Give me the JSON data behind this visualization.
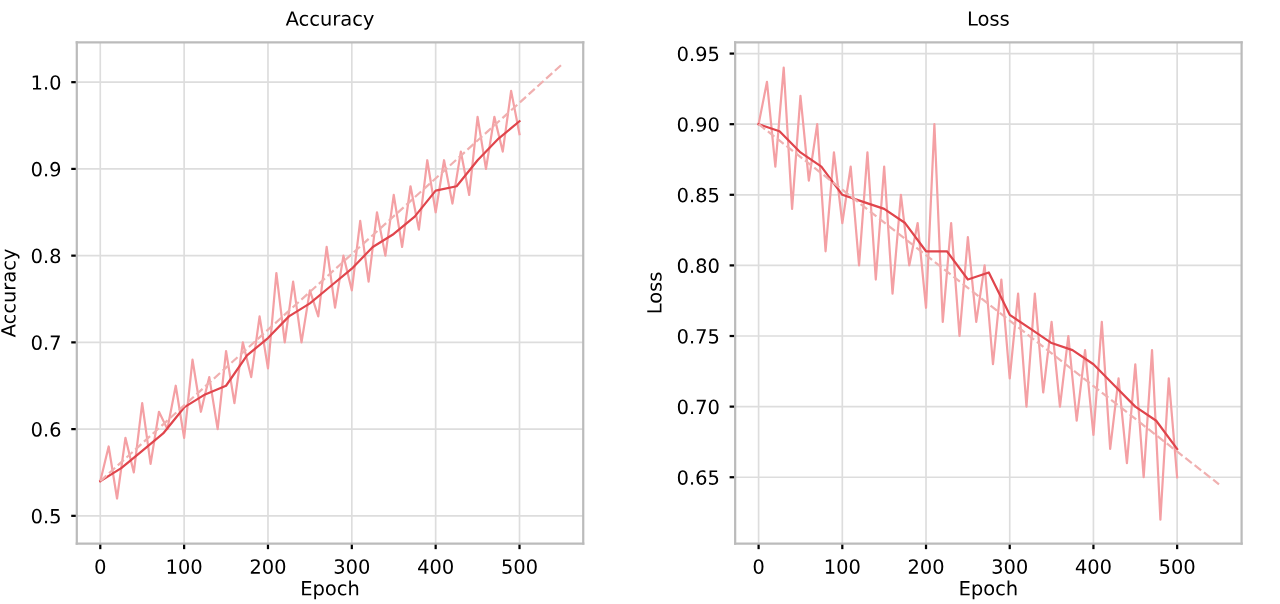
{
  "chart_data": [
    {
      "type": "line",
      "title": "Accuracy",
      "xlabel": "Epoch",
      "ylabel": "Accuracy",
      "xlim": [
        -28,
        576
      ],
      "ylim": [
        0.468,
        1.046
      ],
      "xticks": [
        0,
        100,
        200,
        300,
        400,
        500
      ],
      "yticks": [
        {
          "value": 0.5,
          "label": "0.5"
        },
        {
          "value": 0.6,
          "label": "0.6"
        },
        {
          "value": 0.7,
          "label": "0.7"
        },
        {
          "value": 0.8,
          "label": "0.8"
        },
        {
          "value": 0.9,
          "label": "0.9"
        },
        {
          "value": 1.0,
          "label": "1.0"
        }
      ],
      "grid": true,
      "legend": false,
      "series": [
        {
          "color": "#f4a0a4",
          "line_style": "solid",
          "x": [
            0,
            10,
            20,
            30,
            40,
            50,
            60,
            70,
            80,
            90,
            100,
            110,
            120,
            130,
            140,
            150,
            160,
            170,
            180,
            190,
            200,
            210,
            220,
            230,
            240,
            250,
            260,
            270,
            280,
            290,
            300,
            310,
            320,
            330,
            340,
            350,
            360,
            370,
            380,
            390,
            400,
            410,
            420,
            430,
            440,
            450,
            460,
            470,
            480,
            490,
            500
          ],
          "values": [
            0.54,
            0.58,
            0.52,
            0.59,
            0.55,
            0.63,
            0.56,
            0.62,
            0.6,
            0.65,
            0.59,
            0.68,
            0.62,
            0.66,
            0.6,
            0.69,
            0.63,
            0.7,
            0.66,
            0.73,
            0.67,
            0.78,
            0.7,
            0.77,
            0.7,
            0.76,
            0.73,
            0.81,
            0.74,
            0.8,
            0.76,
            0.84,
            0.77,
            0.85,
            0.8,
            0.87,
            0.81,
            0.88,
            0.83,
            0.91,
            0.85,
            0.91,
            0.86,
            0.92,
            0.87,
            0.96,
            0.9,
            0.96,
            0.92,
            0.99,
            0.94
          ]
        },
        {
          "color": "#e0454c",
          "line_style": "solid",
          "x": [
            0,
            25,
            50,
            75,
            100,
            125,
            150,
            175,
            200,
            225,
            250,
            275,
            300,
            325,
            350,
            375,
            400,
            425,
            450,
            475,
            500
          ],
          "values": [
            0.54,
            0.555,
            0.575,
            0.595,
            0.625,
            0.64,
            0.65,
            0.685,
            0.705,
            0.73,
            0.745,
            0.765,
            0.785,
            0.81,
            0.825,
            0.845,
            0.875,
            0.88,
            0.91,
            0.935,
            0.955
          ]
        },
        {
          "color": "#f0b0b0",
          "line_style": "dashed",
          "x": [
            0,
            550
          ],
          "values": [
            0.54,
            1.02
          ]
        }
      ]
    },
    {
      "type": "line",
      "title": "Loss",
      "xlabel": "Epoch",
      "ylabel": "Loss",
      "xlim": [
        -28,
        577
      ],
      "ylim": [
        0.603,
        0.958
      ],
      "xticks": [
        0,
        100,
        200,
        300,
        400,
        500
      ],
      "yticks": [
        {
          "value": 0.65,
          "label": "0.65"
        },
        {
          "value": 0.7,
          "label": "0.70"
        },
        {
          "value": 0.75,
          "label": "0.75"
        },
        {
          "value": 0.8,
          "label": "0.80"
        },
        {
          "value": 0.85,
          "label": "0.85"
        },
        {
          "value": 0.9,
          "label": "0.90"
        },
        {
          "value": 0.95,
          "label": "0.95"
        }
      ],
      "grid": true,
      "legend": false,
      "series": [
        {
          "color": "#f4a0a4",
          "line_style": "solid",
          "x": [
            0,
            10,
            20,
            30,
            40,
            50,
            60,
            70,
            80,
            90,
            100,
            110,
            120,
            130,
            140,
            150,
            160,
            170,
            180,
            190,
            200,
            210,
            220,
            230,
            240,
            250,
            260,
            270,
            280,
            290,
            300,
            310,
            320,
            330,
            340,
            350,
            360,
            370,
            380,
            390,
            400,
            410,
            420,
            430,
            440,
            450,
            460,
            470,
            480,
            490,
            500
          ],
          "values": [
            0.9,
            0.93,
            0.87,
            0.94,
            0.84,
            0.92,
            0.86,
            0.9,
            0.81,
            0.88,
            0.83,
            0.87,
            0.8,
            0.88,
            0.79,
            0.87,
            0.78,
            0.85,
            0.8,
            0.83,
            0.77,
            0.9,
            0.76,
            0.83,
            0.75,
            0.82,
            0.76,
            0.8,
            0.73,
            0.79,
            0.72,
            0.78,
            0.7,
            0.78,
            0.71,
            0.76,
            0.7,
            0.75,
            0.69,
            0.74,
            0.68,
            0.76,
            0.67,
            0.72,
            0.66,
            0.73,
            0.65,
            0.74,
            0.62,
            0.72,
            0.65
          ]
        },
        {
          "color": "#e0454c",
          "line_style": "solid",
          "x": [
            0,
            25,
            50,
            75,
            100,
            125,
            150,
            175,
            200,
            225,
            250,
            275,
            300,
            325,
            350,
            375,
            400,
            425,
            450,
            475,
            500
          ],
          "values": [
            0.9,
            0.895,
            0.88,
            0.87,
            0.85,
            0.845,
            0.84,
            0.83,
            0.81,
            0.81,
            0.79,
            0.795,
            0.765,
            0.755,
            0.745,
            0.74,
            0.73,
            0.715,
            0.7,
            0.69,
            0.67
          ]
        },
        {
          "color": "#f0b0b0",
          "line_style": "dashed",
          "x": [
            0,
            550
          ],
          "values": [
            0.9,
            0.645
          ]
        }
      ]
    }
  ]
}
